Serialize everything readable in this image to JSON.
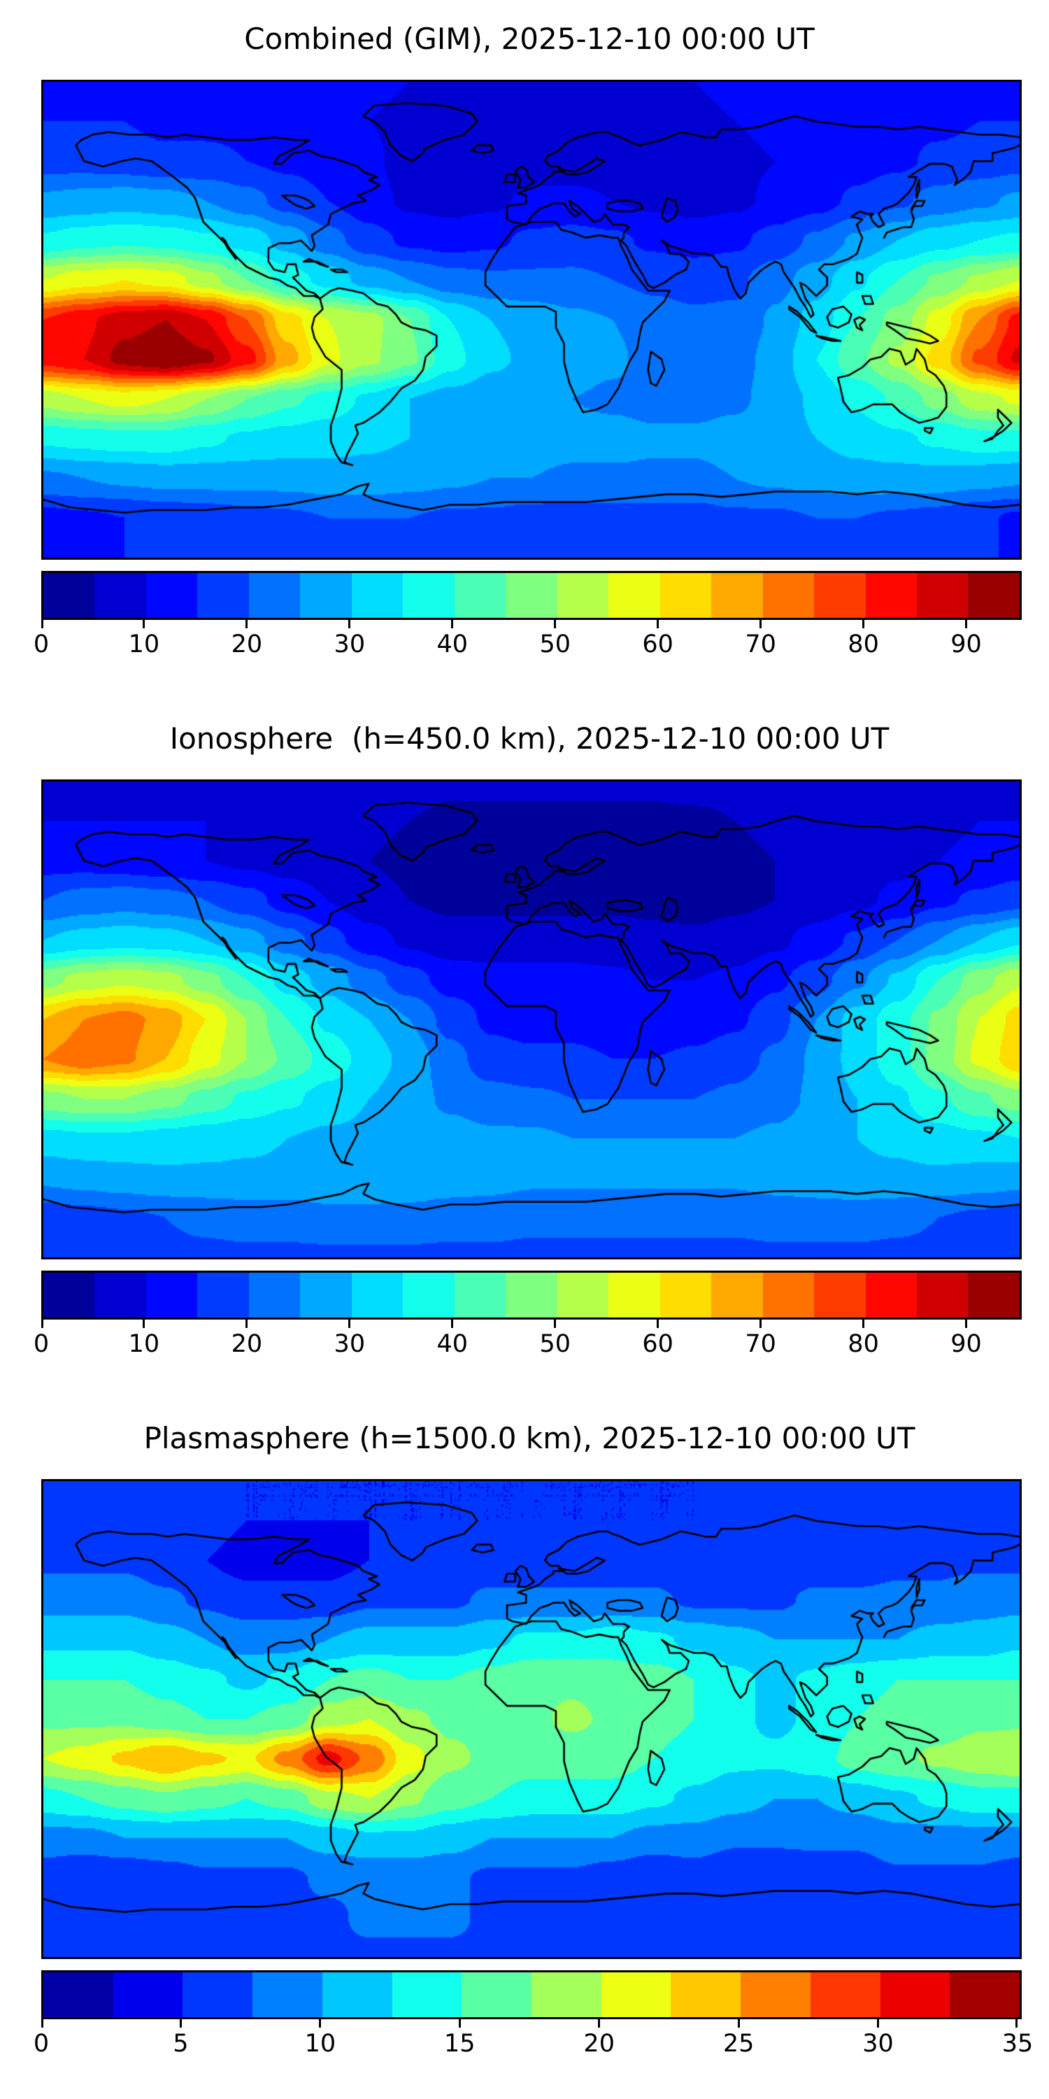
{
  "figure": {
    "background": "#ffffff",
    "coastline_color": "#000000",
    "border_color": "#000000",
    "colormap": "jet"
  },
  "chart_data": [
    {
      "type": "heatmap",
      "title": "Combined (GIM), 2025-12-10 00:00 UT",
      "projection": "equirectangular",
      "lon_range": [
        -180,
        180
      ],
      "lat_range": [
        -90,
        90
      ],
      "levels": {
        "min": 0,
        "max": 95,
        "step": 5,
        "n_segments": 19
      },
      "colorbar_ticks": [
        0,
        10,
        20,
        30,
        40,
        50,
        60,
        70,
        80,
        90
      ],
      "legend_position": "bottom",
      "grid": false,
      "lon": [
        -180,
        -165,
        -150,
        -135,
        -120,
        -105,
        -90,
        -75,
        -60,
        -45,
        -30,
        -15,
        0,
        15,
        30,
        45,
        60,
        75,
        90,
        105,
        120,
        135,
        150,
        165,
        180
      ],
      "lat": [
        90,
        75,
        60,
        45,
        30,
        15,
        0,
        -15,
        -30,
        -45,
        -60,
        -75,
        -90
      ],
      "values": [
        [
          12,
          12,
          12,
          12,
          12,
          12,
          12,
          11,
          11,
          10,
          10,
          10,
          10,
          10,
          10,
          10,
          10,
          11,
          11,
          12,
          12,
          12,
          12,
          12,
          12
        ],
        [
          15,
          15,
          15,
          14,
          14,
          14,
          13,
          12,
          10,
          9,
          8,
          8,
          8,
          8,
          8,
          9,
          9,
          10,
          11,
          12,
          13,
          14,
          14,
          15,
          15
        ],
        [
          18,
          18,
          17,
          16,
          16,
          15,
          14,
          13,
          11,
          8,
          7,
          7,
          8,
          8,
          8,
          8,
          8,
          9,
          10,
          11,
          13,
          14,
          16,
          17,
          18
        ],
        [
          26,
          27,
          28,
          27,
          25,
          22,
          18,
          15,
          12,
          9,
          8,
          9,
          11,
          11,
          10,
          9,
          8,
          9,
          11,
          13,
          16,
          19,
          22,
          24,
          26
        ],
        [
          36,
          38,
          39,
          38,
          36,
          33,
          28,
          22,
          17,
          14,
          13,
          14,
          16,
          17,
          16,
          14,
          13,
          14,
          17,
          21,
          26,
          30,
          33,
          35,
          36
        ],
        [
          55,
          58,
          60,
          58,
          52,
          45,
          38,
          33,
          28,
          25,
          22,
          21,
          21,
          21,
          20,
          19,
          18,
          19,
          23,
          28,
          34,
          40,
          46,
          51,
          55
        ],
        [
          80,
          84,
          88,
          90,
          85,
          75,
          62,
          55,
          52,
          45,
          35,
          30,
          28,
          26,
          25,
          22,
          21,
          21,
          26,
          32,
          40,
          47,
          57,
          70,
          82
        ],
        [
          82,
          85,
          92,
          95,
          91,
          82,
          67,
          56,
          51,
          46,
          37,
          31,
          29,
          28,
          26,
          23,
          22,
          23,
          27,
          35,
          44,
          51,
          62,
          76,
          86
        ],
        [
          52,
          55,
          57,
          55,
          50,
          45,
          41,
          38,
          34,
          30,
          28,
          27,
          26,
          25,
          24,
          23,
          23,
          24,
          27,
          31,
          36,
          41,
          47,
          53,
          56
        ],
        [
          36,
          37,
          38,
          38,
          36,
          34,
          33,
          32,
          31,
          30,
          29,
          28,
          28,
          27,
          27,
          26,
          26,
          27,
          28,
          30,
          32,
          34,
          36,
          38,
          38
        ],
        [
          24,
          25,
          26,
          27,
          27,
          27,
          27,
          28,
          28,
          27,
          26,
          25,
          25,
          24,
          24,
          24,
          24,
          25,
          26,
          27,
          28,
          28,
          28,
          27,
          26
        ],
        [
          13,
          14,
          15,
          16,
          17,
          18,
          19,
          20,
          20,
          20,
          19,
          19,
          18,
          18,
          18,
          18,
          18,
          19,
          19,
          20,
          20,
          19,
          18,
          16,
          14
        ],
        [
          15,
          15,
          15,
          15,
          15,
          15,
          15,
          15,
          15,
          15,
          15,
          15,
          15,
          15,
          15,
          15,
          15,
          15,
          15,
          15,
          15,
          15,
          15,
          15,
          15
        ]
      ]
    },
    {
      "type": "heatmap",
      "title": "Ionosphere  (h=450.0 km), 2025-12-10 00:00 UT",
      "projection": "equirectangular",
      "lon_range": [
        -180,
        180
      ],
      "lat_range": [
        -90,
        90
      ],
      "levels": {
        "min": 0,
        "max": 95,
        "step": 5,
        "n_segments": 19
      },
      "colorbar_ticks": [
        0,
        10,
        20,
        30,
        40,
        50,
        60,
        70,
        80,
        90
      ],
      "legend_position": "bottom",
      "grid": false,
      "lon": [
        -180,
        -165,
        -150,
        -135,
        -120,
        -105,
        -90,
        -75,
        -60,
        -45,
        -30,
        -15,
        0,
        15,
        30,
        45,
        60,
        75,
        90,
        105,
        120,
        135,
        150,
        165,
        180
      ],
      "lat": [
        90,
        75,
        60,
        45,
        30,
        15,
        0,
        -15,
        -30,
        -45,
        -60,
        -75,
        -90
      ],
      "values": [
        [
          8,
          8,
          8,
          8,
          8,
          8,
          8,
          8,
          7,
          7,
          6,
          6,
          6,
          6,
          6,
          6,
          7,
          7,
          7,
          8,
          8,
          8,
          8,
          8,
          8
        ],
        [
          10,
          10,
          10,
          10,
          10,
          9,
          8,
          7,
          6,
          5,
          4,
          4,
          4,
          4,
          4,
          4,
          4,
          5,
          6,
          7,
          8,
          9,
          9,
          10,
          10
        ],
        [
          13,
          13,
          12,
          11,
          10,
          9,
          8,
          7,
          5,
          4,
          3,
          3,
          3,
          3,
          3,
          3,
          3,
          4,
          5,
          6,
          8,
          9,
          10,
          11,
          12
        ],
        [
          20,
          22,
          23,
          22,
          20,
          17,
          13,
          10,
          7,
          5,
          4,
          4,
          4,
          4,
          4,
          4,
          3,
          4,
          5,
          7,
          9,
          11,
          14,
          16,
          18
        ],
        [
          30,
          32,
          33,
          32,
          30,
          27,
          22,
          17,
          12,
          9,
          7,
          7,
          7,
          7,
          7,
          6,
          6,
          7,
          9,
          12,
          16,
          20,
          25,
          30,
          34
        ],
        [
          48,
          52,
          54,
          52,
          47,
          40,
          33,
          28,
          22,
          17,
          13,
          12,
          12,
          12,
          11,
          10,
          10,
          11,
          14,
          18,
          24,
          31,
          40,
          48,
          54
        ],
        [
          65,
          70,
          72,
          68,
          60,
          50,
          40,
          34,
          30,
          25,
          18,
          14,
          13,
          13,
          12,
          11,
          12,
          14,
          18,
          25,
          32,
          38,
          46,
          55,
          62
        ],
        [
          70,
          73,
          71,
          65,
          57,
          50,
          44,
          38,
          33,
          28,
          22,
          17,
          16,
          16,
          15,
          15,
          16,
          18,
          21,
          26,
          32,
          38,
          47,
          56,
          64
        ],
        [
          48,
          50,
          50,
          47,
          43,
          39,
          36,
          33,
          30,
          27,
          24,
          22,
          21,
          20,
          20,
          20,
          20,
          21,
          23,
          26,
          30,
          34,
          39,
          44,
          48
        ],
        [
          33,
          34,
          34,
          33,
          32,
          31,
          30,
          29,
          29,
          28,
          27,
          26,
          26,
          25,
          25,
          25,
          25,
          25,
          26,
          28,
          30,
          31,
          33,
          34,
          35
        ],
        [
          26,
          27,
          28,
          29,
          29,
          29,
          29,
          30,
          30,
          29,
          28,
          27,
          26,
          26,
          26,
          26,
          26,
          26,
          27,
          28,
          29,
          29,
          29,
          28,
          27
        ],
        [
          17,
          18,
          19,
          20,
          21,
          22,
          22,
          23,
          23,
          23,
          22,
          22,
          21,
          21,
          21,
          21,
          21,
          21,
          22,
          22,
          22,
          21,
          20,
          19,
          18
        ],
        [
          19,
          19,
          19,
          19,
          19,
          19,
          19,
          19,
          19,
          19,
          19,
          19,
          19,
          19,
          19,
          19,
          19,
          19,
          19,
          19,
          19,
          19,
          19,
          19,
          19
        ]
      ]
    },
    {
      "type": "heatmap",
      "title": "Plasmasphere (h=1500.0 km), 2025-12-10 00:00 UT",
      "projection": "equirectangular",
      "lon_range": [
        -180,
        180
      ],
      "lat_range": [
        -90,
        90
      ],
      "levels": {
        "min": 0,
        "max": 35,
        "step": 2.5,
        "n_segments": 14
      },
      "colorbar_ticks": [
        0,
        5,
        10,
        15,
        20,
        25,
        30,
        35
      ],
      "legend_position": "bottom",
      "grid": false,
      "lon": [
        -180,
        -165,
        -150,
        -135,
        -120,
        -105,
        -90,
        -75,
        -60,
        -45,
        -30,
        -15,
        0,
        15,
        30,
        45,
        60,
        75,
        90,
        105,
        120,
        135,
        150,
        165,
        180
      ],
      "lat": [
        90,
        75,
        60,
        45,
        30,
        15,
        0,
        -15,
        -30,
        -45,
        -60,
        -75,
        -90
      ],
      "values": [
        [
          5,
          5,
          5,
          5,
          5,
          5,
          5,
          5,
          5,
          5,
          5,
          5,
          5,
          5,
          5,
          5,
          5,
          5,
          5,
          5,
          5,
          5,
          5,
          5,
          5
        ],
        [
          6,
          6,
          6,
          6,
          6,
          5,
          5,
          5,
          5,
          5,
          5,
          5,
          5,
          5,
          5,
          5,
          5,
          6,
          6,
          6,
          6,
          6,
          6,
          6,
          6
        ],
        [
          7,
          7,
          7,
          6,
          5,
          4,
          4,
          4,
          5,
          6,
          6,
          6,
          6,
          6,
          6,
          6,
          5,
          5,
          6,
          6,
          6,
          7,
          7,
          7,
          7
        ],
        [
          9,
          9,
          9,
          8,
          7,
          6,
          6,
          6,
          7,
          7,
          7,
          8,
          8,
          8,
          8,
          8,
          7,
          7,
          7,
          8,
          8,
          8,
          8,
          9,
          9
        ],
        [
          12,
          12,
          12,
          11,
          10,
          9,
          9,
          10,
          11,
          11,
          11,
          12,
          13,
          13,
          14,
          13,
          12,
          11,
          10,
          10,
          10,
          10,
          11,
          11,
          12
        ],
        [
          15,
          15,
          15,
          14,
          13,
          12,
          13,
          15,
          16,
          15,
          15,
          16,
          17,
          17,
          16,
          16,
          15,
          13,
          12,
          13,
          14,
          15,
          15,
          15,
          15
        ],
        [
          17,
          17,
          17,
          16,
          15,
          15,
          16,
          19,
          20,
          18,
          17,
          17,
          17,
          18,
          17,
          16,
          15,
          13,
          12,
          13,
          15,
          16,
          16,
          17,
          17
        ],
        [
          20,
          21,
          23,
          25,
          23,
          22,
          26,
          31,
          27,
          21,
          18,
          17,
          16,
          16,
          16,
          15,
          14,
          13,
          13,
          14,
          16,
          17,
          18,
          19,
          20
        ],
        [
          14,
          15,
          16,
          17,
          16,
          15,
          16,
          19,
          20,
          18,
          16,
          15,
          14,
          14,
          14,
          13,
          12,
          11,
          10,
          10,
          11,
          12,
          13,
          14,
          14
        ],
        [
          9,
          9,
          10,
          10,
          10,
          10,
          10,
          11,
          12,
          12,
          11,
          10,
          10,
          10,
          10,
          9,
          9,
          8,
          8,
          8,
          8,
          9,
          9,
          9,
          9
        ],
        [
          6,
          5,
          5,
          6,
          7,
          7,
          7,
          8,
          8,
          8,
          8,
          7,
          7,
          7,
          6,
          5,
          6,
          5,
          5,
          6,
          6,
          7,
          7,
          7,
          6
        ],
        [
          7,
          7,
          7,
          7,
          7,
          7,
          7,
          7,
          8,
          8,
          8,
          7,
          7,
          7,
          7,
          7,
          7,
          7,
          7,
          7,
          7,
          7,
          7,
          7,
          7
        ],
        [
          7,
          7,
          7,
          7,
          7,
          7,
          7,
          7,
          7,
          7,
          7,
          7,
          7,
          7,
          7,
          7,
          7,
          7,
          7,
          7,
          7,
          7,
          7,
          7,
          7
        ]
      ]
    }
  ]
}
